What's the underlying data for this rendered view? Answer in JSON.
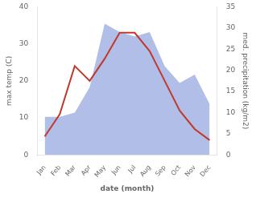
{
  "chart_data": {
    "type": "line",
    "categories": [
      "Jan",
      "Feb",
      "Mar",
      "Apr",
      "May",
      "Jun",
      "Jul",
      "Aug",
      "Sep",
      "Oct",
      "Nov",
      "Dec"
    ],
    "series": [
      {
        "type": "area",
        "color": "#b0bee8",
        "axis": "y2",
        "values": [
          9,
          9,
          10,
          16,
          31,
          29,
          28,
          29,
          21,
          17,
          19,
          12
        ]
      },
      {
        "type": "line",
        "color": "#c0392b",
        "values": [
          5,
          11,
          24,
          20,
          26,
          33,
          33,
          28,
          20,
          12,
          7,
          4
        ]
      }
    ],
    "xlabel": "date (month)",
    "ylabel": "max temp (C)",
    "y2label": "med. precipitation (kg/m2)",
    "ylim": [
      0,
      40
    ],
    "yticks": [
      0,
      10,
      20,
      30,
      40
    ],
    "y2lim": [
      0,
      35
    ],
    "y2ticks": [
      0,
      5,
      10,
      15,
      20,
      25,
      30,
      35
    ],
    "grid": false
  }
}
